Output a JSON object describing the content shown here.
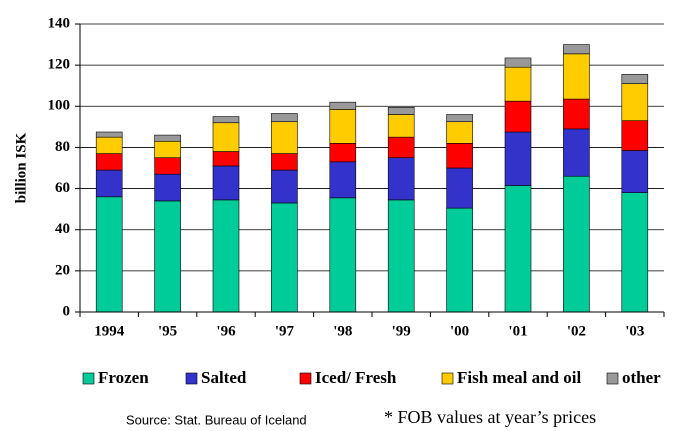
{
  "chart_data": {
    "type": "bar",
    "stacked": true,
    "y_label": "billion ISK",
    "categories": [
      "1994",
      "'95",
      "'96",
      "'97",
      "'98",
      "'99",
      "'00",
      "'01",
      "'02",
      "'03"
    ],
    "series": [
      {
        "name": "Frozen",
        "color": "#00cc99",
        "values": [
          56,
          54,
          54.5,
          53,
          55.5,
          54.5,
          50.5,
          61.5,
          66,
          58
        ]
      },
      {
        "name": "Salted",
        "color": "#3333cc",
        "values": [
          13,
          13,
          16.5,
          16,
          17.5,
          20.5,
          19.5,
          26,
          23,
          20.5
        ]
      },
      {
        "name": "Iced/ Fresh",
        "color": "#ff0000",
        "values": [
          8,
          8,
          7,
          8,
          9,
          10,
          12,
          15,
          14.5,
          14.5
        ]
      },
      {
        "name": "Fish meal and oil",
        "color": "#ffcc00",
        "values": [
          8,
          8,
          14,
          15.5,
          16.5,
          11,
          10.5,
          16.5,
          22,
          18
        ]
      },
      {
        "name": "other",
        "color": "#999999",
        "values": [
          2.5,
          3,
          3,
          4,
          3.5,
          3.5,
          3.5,
          4.5,
          4.5,
          4.5
        ]
      }
    ],
    "ylim": [
      0,
      140
    ],
    "yticks": [
      0,
      20,
      40,
      60,
      80,
      100,
      120,
      140
    ],
    "grid": true,
    "source": "Source: Stat. Bureau of Iceland",
    "note": "* FOB values at year’s prices"
  }
}
